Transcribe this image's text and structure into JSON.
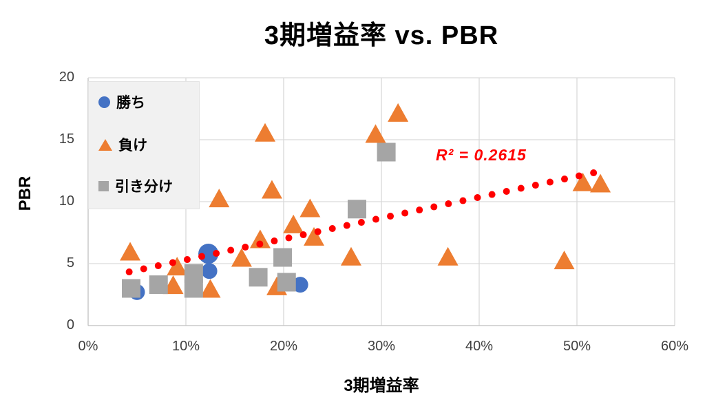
{
  "title": "3期増益率 vs. PBR",
  "x_axis": {
    "label": "3期増益率",
    "tick_labels": [
      "0%",
      "10%",
      "20%",
      "30%",
      "40%",
      "50%",
      "60%"
    ],
    "tick_values": [
      0,
      10,
      20,
      30,
      40,
      50,
      60
    ],
    "min": 0,
    "max": 60
  },
  "y_axis": {
    "label": "PBR",
    "tick_labels": [
      "0",
      "5",
      "10",
      "15",
      "20"
    ],
    "tick_values": [
      0,
      5,
      10,
      15,
      20
    ],
    "min": 0,
    "max": 20
  },
  "legend": {
    "items": [
      {
        "label": "勝ち",
        "marker": "circle",
        "color": "#4472C4"
      },
      {
        "label": "負け",
        "marker": "triangle",
        "color": "#ED7D31"
      },
      {
        "label": "引き分け",
        "marker": "square",
        "color": "#A5A5A5"
      }
    ]
  },
  "colors": {
    "grid": "#D9D9D9",
    "axis_line": "#BFBFBF",
    "trend": "#FF0000",
    "tick_text": "#404040",
    "title_text": "#000000"
  },
  "chart_data": {
    "type": "scatter",
    "title": "3期増益率 vs. PBR",
    "xlabel": "3期増益率",
    "ylabel": "PBR",
    "xlim": [
      0,
      60
    ],
    "ylim": [
      0,
      20
    ],
    "x_unit": "percent",
    "grid": true,
    "legend_position": "top-left-inside",
    "series": [
      {
        "name": "勝ち",
        "marker": "circle",
        "color": "#4472C4",
        "points": [
          [
            12.3,
            5.8,
            1.27
          ],
          [
            12.4,
            4.4
          ],
          [
            21.7,
            3.3
          ],
          [
            5.0,
            2.7
          ]
        ]
      },
      {
        "name": "負け",
        "marker": "triangle",
        "color": "#ED7D31",
        "points": [
          [
            4.3,
            6.0
          ],
          [
            18.1,
            15.6
          ],
          [
            29.4,
            15.5
          ],
          [
            31.7,
            17.2
          ],
          [
            13.4,
            10.3
          ],
          [
            18.8,
            11.0
          ],
          [
            22.7,
            9.5
          ],
          [
            21.0,
            8.2
          ],
          [
            23.1,
            7.2
          ],
          [
            17.6,
            7.0
          ],
          [
            15.7,
            5.5
          ],
          [
            26.9,
            5.6
          ],
          [
            36.8,
            5.6
          ],
          [
            48.7,
            5.3
          ],
          [
            50.6,
            11.6
          ],
          [
            52.4,
            11.5
          ],
          [
            9.1,
            4.8
          ],
          [
            8.7,
            3.3
          ],
          [
            12.5,
            3.0
          ],
          [
            19.3,
            3.2
          ]
        ]
      },
      {
        "name": "引き分け",
        "marker": "square",
        "color": "#A5A5A5",
        "points": [
          [
            4.4,
            3.0
          ],
          [
            7.2,
            3.3
          ],
          [
            10.8,
            4.2
          ],
          [
            10.8,
            3.0
          ],
          [
            17.4,
            3.9
          ],
          [
            19.9,
            5.5
          ],
          [
            20.3,
            3.5
          ],
          [
            27.5,
            9.4
          ],
          [
            30.5,
            14.0
          ]
        ]
      }
    ],
    "trendline": {
      "style": "dotted",
      "color": "#FF0000",
      "r_squared_label": "R² = 0.2615",
      "r_squared": 0.2615,
      "start": {
        "x": 4.2,
        "y": 4.33
      },
      "end": {
        "x": 51.7,
        "y": 12.33
      },
      "dot_count": 33
    }
  }
}
